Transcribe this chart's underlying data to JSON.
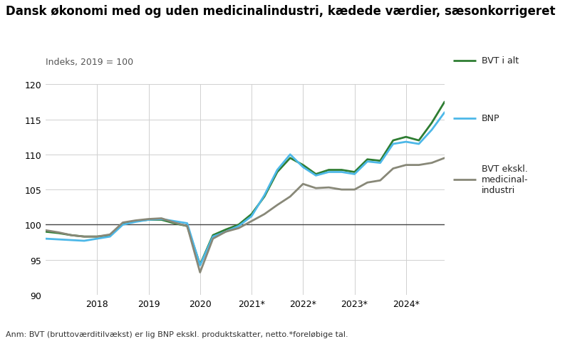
{
  "title": "Dansk økonomi med og uden medicinalindustri, kædede værdier, sæsonkorrigeret",
  "subtitle": "Indeks, 2019 = 100",
  "footnote": "Anm: BVT (bruttoværditilvækst) er lig BNP ekskl. produktskatter, netto.*foreløbige tal.",
  "ylim": [
    90,
    120
  ],
  "yticks": [
    90,
    95,
    100,
    105,
    110,
    115,
    120
  ],
  "xtick_labels": [
    "2018",
    "2019",
    "2020",
    "2021*",
    "2022*",
    "2023*",
    "2024*"
  ],
  "hline_y": 100,
  "series": {
    "BVT i alt": {
      "color": "#2e7d32",
      "linewidth": 2.0,
      "values": [
        99.0,
        98.8,
        98.5,
        98.3,
        98.3,
        98.5,
        100.2,
        100.5,
        100.7,
        100.7,
        100.2,
        99.8,
        94.3,
        98.5,
        99.3,
        100.0,
        101.5,
        104.0,
        107.5,
        109.5,
        108.5,
        107.2,
        107.8,
        107.8,
        107.5,
        109.3,
        109.1,
        112.0,
        112.5,
        112.0,
        114.5,
        117.5
      ]
    },
    "BNP": {
      "color": "#4db8e8",
      "linewidth": 2.0,
      "values": [
        98.0,
        97.9,
        97.8,
        97.7,
        98.0,
        98.3,
        100.0,
        100.4,
        100.7,
        100.8,
        100.5,
        100.2,
        94.2,
        98.3,
        99.0,
        99.8,
        101.2,
        104.2,
        107.8,
        110.0,
        108.2,
        107.0,
        107.5,
        107.5,
        107.2,
        109.0,
        108.8,
        111.5,
        111.8,
        111.5,
        113.5,
        116.0
      ]
    },
    "BVT ekskl. medicinal-industri": {
      "color": "#888878",
      "linewidth": 2.0,
      "values": [
        99.2,
        98.9,
        98.5,
        98.3,
        98.3,
        98.6,
        100.3,
        100.6,
        100.8,
        100.9,
        100.3,
        99.8,
        93.2,
        98.0,
        99.0,
        99.5,
        100.5,
        101.5,
        102.8,
        104.0,
        105.8,
        105.2,
        105.3,
        105.0,
        105.0,
        106.0,
        106.3,
        108.0,
        108.5,
        108.5,
        108.8,
        109.5
      ]
    }
  },
  "legend_labels": [
    "BVT i alt",
    "BNP",
    "BVT ekskl.\nmedicinal-\nindustri"
  ],
  "legend_colors": [
    "#2e7d32",
    "#4db8e8",
    "#888878"
  ],
  "background_color": "#ffffff",
  "grid_color": "#d0d0d0",
  "title_fontsize": 12,
  "subtitle_fontsize": 9,
  "footnote_fontsize": 8,
  "tick_fontsize": 9
}
